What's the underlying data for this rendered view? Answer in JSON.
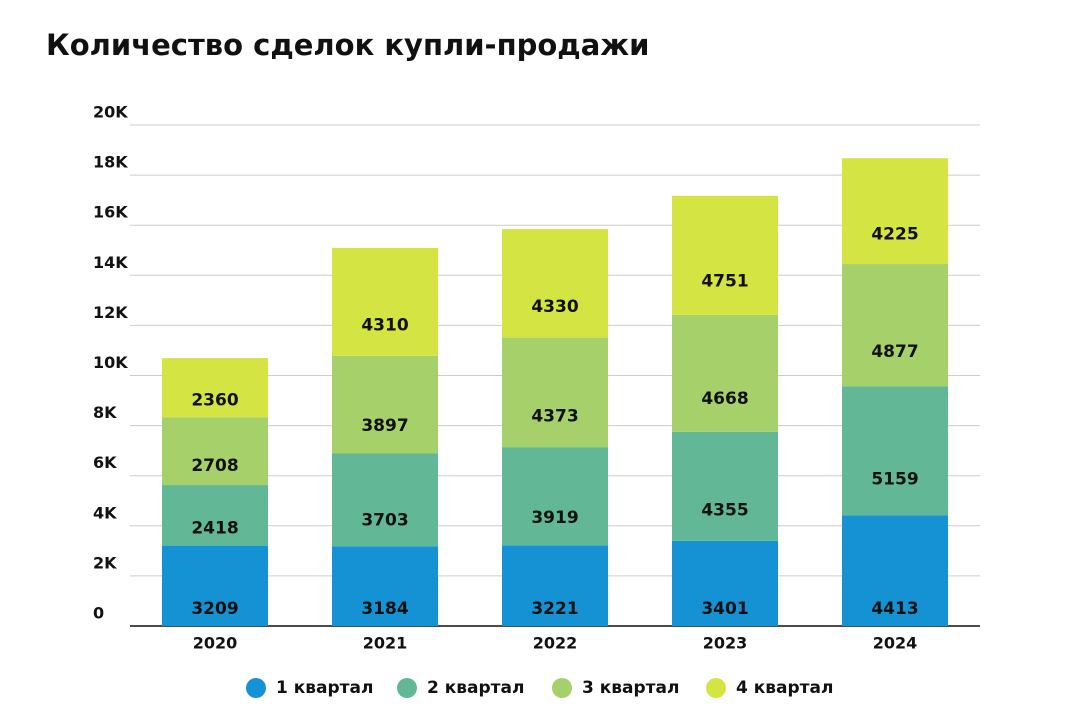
{
  "chart_data": {
    "type": "stacked-bar",
    "title": "Количество сделок купли-продажи",
    "categories": [
      "2020",
      "2021",
      "2022",
      "2023",
      "2024"
    ],
    "series": [
      {
        "name": "1 квартал",
        "color": "#1592d4",
        "values": [
          3209,
          3184,
          3221,
          3401,
          4413
        ]
      },
      {
        "name": "2 квартал",
        "color": "#62b896",
        "values": [
          2418,
          3703,
          3919,
          4355,
          5159
        ]
      },
      {
        "name": "3 квартал",
        "color": "#a6d06a",
        "values": [
          2708,
          3897,
          4373,
          4668,
          4877
        ]
      },
      {
        "name": "4 квартал",
        "color": "#d4e443",
        "values": [
          2360,
          4310,
          4330,
          4751,
          4225
        ]
      }
    ],
    "ylim": [
      0,
      20000
    ],
    "yticks": [
      0,
      {
        "value": 2000,
        "label": "2K"
      },
      {
        "value": 4000,
        "label": "4K"
      },
      {
        "value": 6000,
        "label": "6K"
      },
      {
        "value": 8000,
        "label": "8K"
      },
      {
        "value": 10000,
        "label": "10K"
      },
      {
        "value": 12000,
        "label": "12K"
      },
      {
        "value": 14000,
        "label": "14K"
      },
      {
        "value": 16000,
        "label": "16K"
      },
      {
        "value": 18000,
        "label": "18K"
      },
      {
        "value": 20000,
        "label": "20K"
      }
    ],
    "grid": true
  }
}
